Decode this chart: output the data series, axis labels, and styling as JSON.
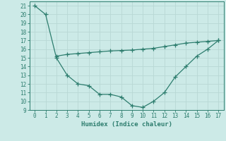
{
  "line1_x": [
    0,
    1,
    2,
    3,
    4,
    5,
    6,
    7,
    8,
    9,
    10,
    11,
    12,
    13,
    14,
    15,
    16,
    17
  ],
  "line1_y": [
    21,
    20,
    15,
    13,
    12,
    11.8,
    10.8,
    10.8,
    10.5,
    9.5,
    9.3,
    10,
    11,
    12.8,
    14,
    15.2,
    16,
    17
  ],
  "line2_x": [
    2,
    3,
    4,
    5,
    6,
    7,
    8,
    9,
    10,
    11,
    12,
    13,
    14,
    15,
    16,
    17
  ],
  "line2_y": [
    15.2,
    15.4,
    15.5,
    15.6,
    15.7,
    15.8,
    15.85,
    15.9,
    16.0,
    16.1,
    16.3,
    16.5,
    16.7,
    16.8,
    16.9,
    17.0
  ],
  "line_color": "#2d7d6e",
  "bg_color": "#cceae7",
  "grid_major_color": "#b8d8d4",
  "grid_minor_color": "#cde8e5",
  "xlabel": "Humidex (Indice chaleur)",
  "xlim": [
    -0.5,
    17.5
  ],
  "ylim": [
    9,
    21.5
  ],
  "xticks": [
    0,
    1,
    2,
    3,
    4,
    5,
    6,
    7,
    8,
    9,
    10,
    11,
    12,
    13,
    14,
    15,
    16,
    17
  ],
  "yticks": [
    9,
    10,
    11,
    12,
    13,
    14,
    15,
    16,
    17,
    18,
    19,
    20,
    21
  ]
}
